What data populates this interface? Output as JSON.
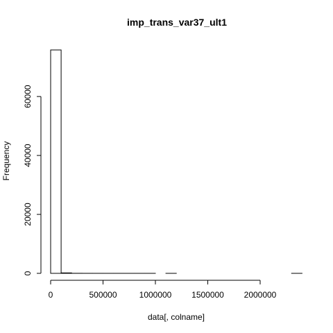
{
  "chart_data": {
    "type": "bar",
    "title": "imp_trans_var37_ult1",
    "xlabel": "data[, colname]",
    "ylabel": "Frequency",
    "xlim": [
      0,
      2400000
    ],
    "ylim": [
      0,
      76000
    ],
    "x_ticks": [
      0,
      500000,
      1000000,
      1500000,
      2000000
    ],
    "x_tick_labels": [
      "0",
      "500000",
      "1000000",
      "1500000",
      "2000000"
    ],
    "y_ticks": [
      0,
      20000,
      40000,
      60000
    ],
    "y_tick_labels": [
      "0",
      "20000",
      "40000",
      "60000"
    ],
    "bin_width": 100000,
    "bins": [
      {
        "start": 0,
        "end": 100000,
        "count": 75800
      },
      {
        "start": 100000,
        "end": 200000,
        "count": 150
      },
      {
        "start": 200000,
        "end": 300000,
        "count": 20
      },
      {
        "start": 300000,
        "end": 400000,
        "count": 8
      },
      {
        "start": 400000,
        "end": 500000,
        "count": 5
      },
      {
        "start": 500000,
        "end": 600000,
        "count": 3
      },
      {
        "start": 600000,
        "end": 700000,
        "count": 2
      },
      {
        "start": 700000,
        "end": 800000,
        "count": 1
      },
      {
        "start": 800000,
        "end": 900000,
        "count": 1
      },
      {
        "start": 900000,
        "end": 1000000,
        "count": 1
      },
      {
        "start": 1000000,
        "end": 1100000,
        "count": 0
      },
      {
        "start": 1100000,
        "end": 1200000,
        "count": 1
      },
      {
        "start": 1200000,
        "end": 1300000,
        "count": 0
      },
      {
        "start": 1300000,
        "end": 1400000,
        "count": 0
      },
      {
        "start": 1400000,
        "end": 1500000,
        "count": 0
      },
      {
        "start": 1500000,
        "end": 1600000,
        "count": 0
      },
      {
        "start": 1600000,
        "end": 1700000,
        "count": 0
      },
      {
        "start": 1700000,
        "end": 1800000,
        "count": 0
      },
      {
        "start": 1800000,
        "end": 1900000,
        "count": 0
      },
      {
        "start": 1900000,
        "end": 2000000,
        "count": 0
      },
      {
        "start": 2000000,
        "end": 2100000,
        "count": 0
      },
      {
        "start": 2100000,
        "end": 2200000,
        "count": 0
      },
      {
        "start": 2200000,
        "end": 2300000,
        "count": 0
      },
      {
        "start": 2300000,
        "end": 2400000,
        "count": 1
      }
    ],
    "colors": {
      "bar_fill": "#ffffff",
      "bar_stroke": "#000000",
      "axis": "#000000",
      "background": "#ffffff"
    },
    "grid": false,
    "legend": "none"
  }
}
